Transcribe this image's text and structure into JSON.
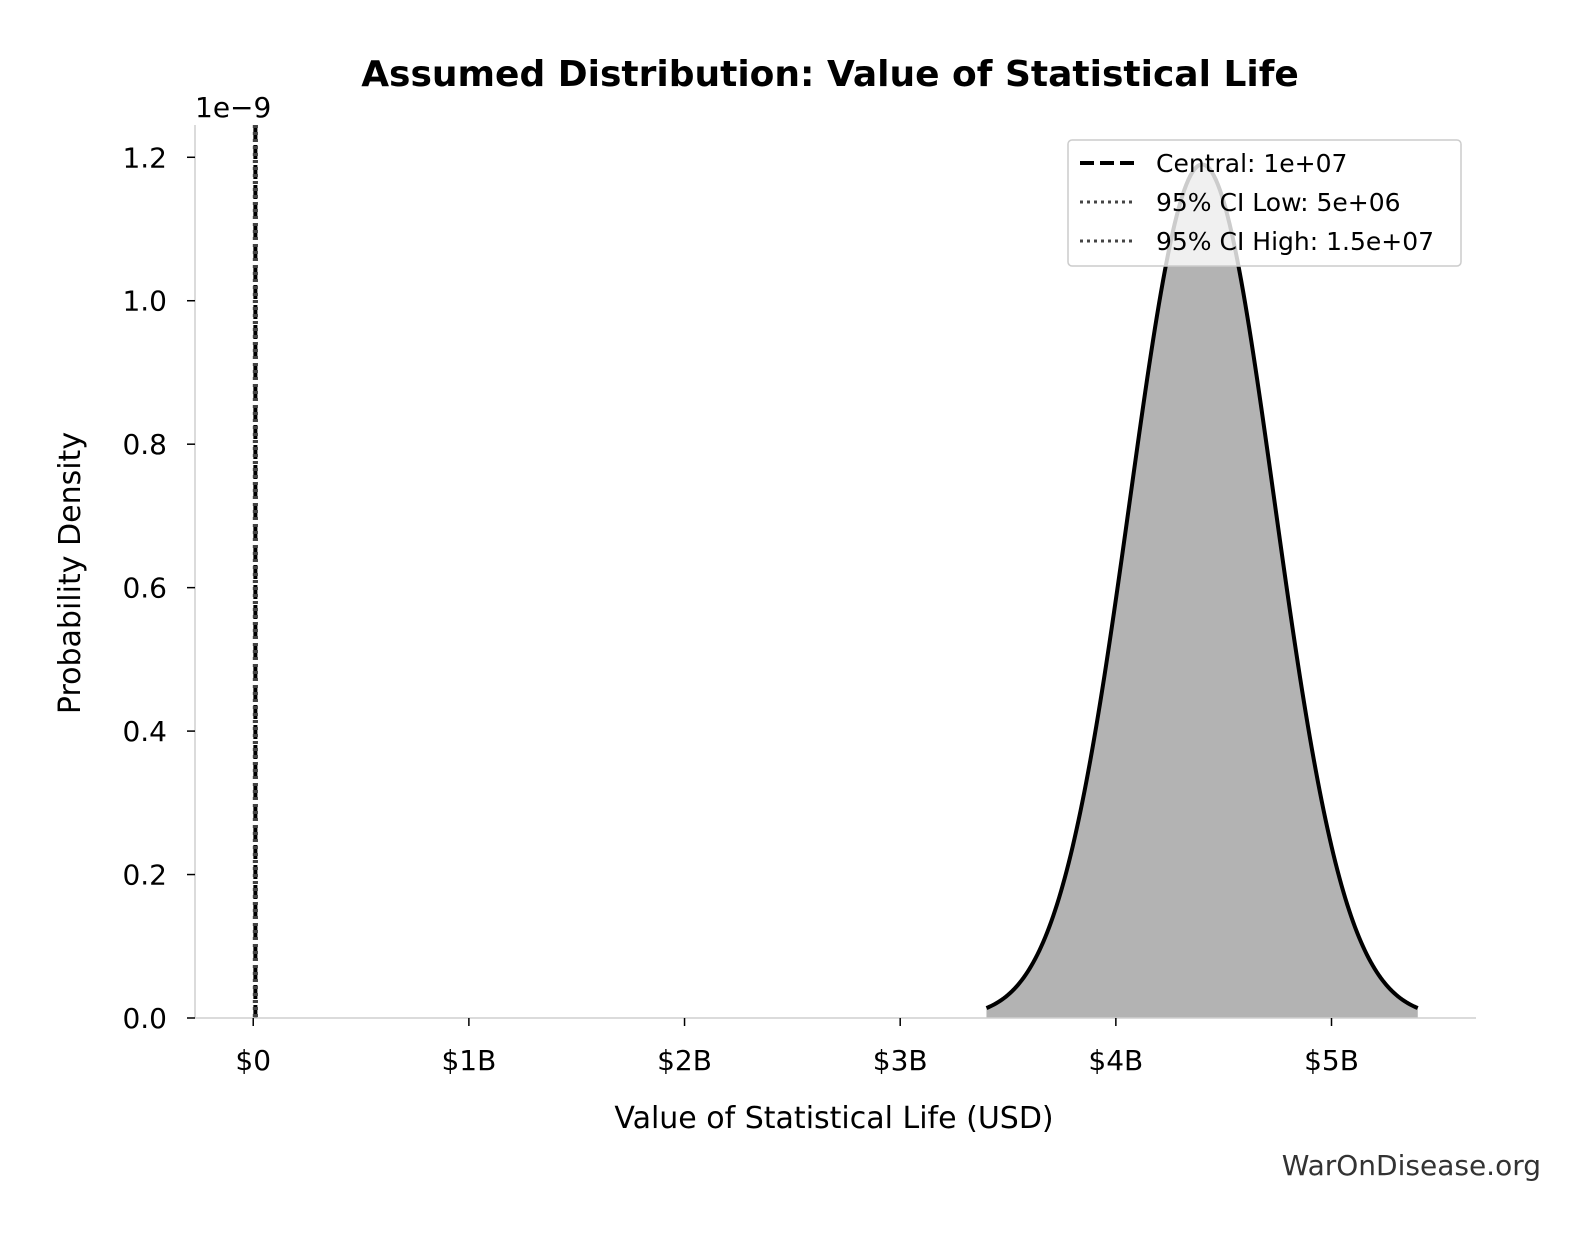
{
  "chart_data": {
    "type": "area",
    "title": "Assumed Distribution: Value of Statistical Life",
    "xlabel": "Value of Statistical Life (USD)",
    "ylabel": "Probability Density",
    "y_offset_label": "1e−9",
    "xlim": [
      -270000000,
      5670000000
    ],
    "ylim": [
      0,
      1.245
    ],
    "x_ticks": [
      {
        "value": 0,
        "label": "$0"
      },
      {
        "value": 1000000000,
        "label": "$1B"
      },
      {
        "value": 2000000000,
        "label": "$2B"
      },
      {
        "value": 3000000000,
        "label": "$3B"
      },
      {
        "value": 4000000000,
        "label": "$4B"
      },
      {
        "value": 5000000000,
        "label": "$5B"
      }
    ],
    "y_ticks": [
      {
        "value": 0.0,
        "label": "0.0"
      },
      {
        "value": 0.2,
        "label": "0.2"
      },
      {
        "value": 0.4,
        "label": "0.4"
      },
      {
        "value": 0.6,
        "label": "0.6"
      },
      {
        "value": 0.8,
        "label": "0.8"
      },
      {
        "value": 1.0,
        "label": "1.0"
      },
      {
        "value": 1.2,
        "label": "1.2"
      }
    ],
    "distribution": {
      "kind": "normal",
      "mean": 4400000000,
      "sd": 335000000,
      "x_start": 3400000000,
      "x_end": 5400000000,
      "peak_density": 1.19,
      "fill_color": "#b3b3b3",
      "line_color": "#000000"
    },
    "reference_lines": [
      {
        "name": "Central",
        "value": 10000000,
        "style": "dashed",
        "label": "Central: 1e+07"
      },
      {
        "name": "95% CI Low",
        "value": 5000000,
        "style": "dotted",
        "label": "95% CI Low: 5e+06"
      },
      {
        "name": "95% CI High",
        "value": 15000000,
        "style": "dotted",
        "label": "95% CI High: 1.5e+07"
      }
    ],
    "legend_position": "top-right",
    "grid": false
  },
  "watermark": "WarOnDisease.org"
}
